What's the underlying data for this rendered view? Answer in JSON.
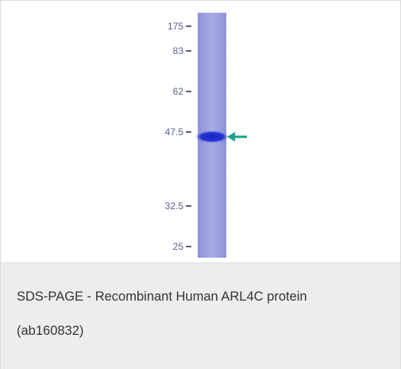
{
  "figure": {
    "markers": [
      "175",
      "83",
      "62",
      "47.5",
      "32.5",
      "25"
    ],
    "caption": {
      "lines": [
        "SDS-PAGE - Recombinant Human ARL4C protein",
        "(ab160832)"
      ]
    }
  }
}
